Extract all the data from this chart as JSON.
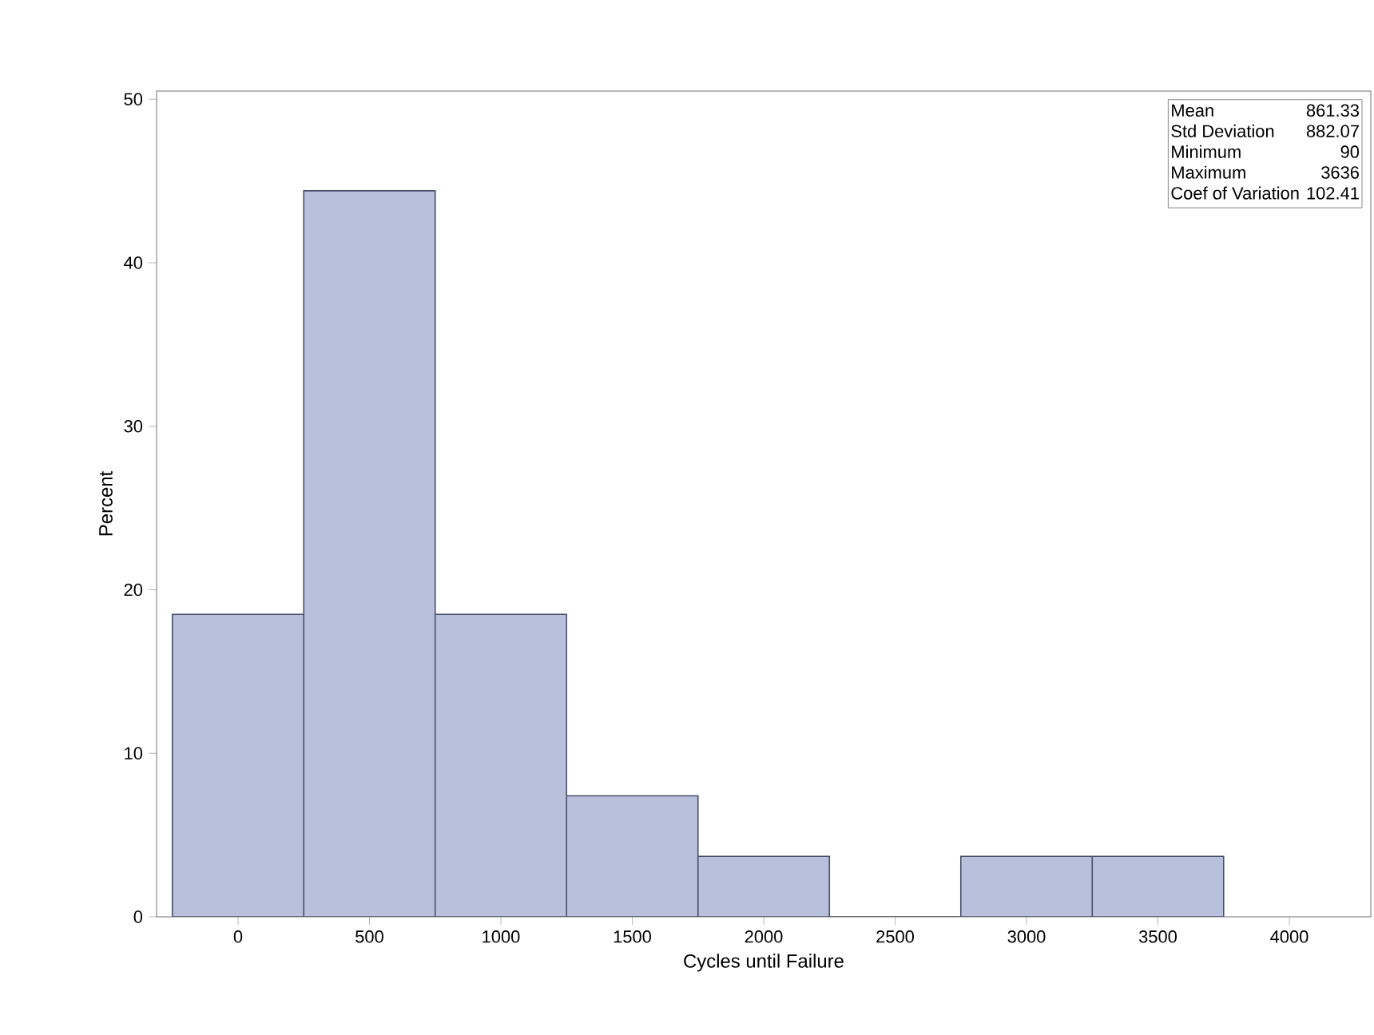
{
  "chart_data": {
    "type": "histogram",
    "xlabel": "Cycles until Failure",
    "ylabel": "Percent",
    "bins": [
      -250,
      250,
      750,
      1250,
      1750,
      2250,
      2750,
      3250,
      3750
    ],
    "values": [
      18.5,
      44.4,
      18.5,
      7.4,
      3.7,
      0,
      3.7,
      3.7
    ],
    "color": "#b8c0dc",
    "xlim": [
      -310,
      4310
    ],
    "xticks": [
      0,
      500,
      1000,
      1500,
      2000,
      2500,
      3000,
      3500,
      4000
    ],
    "ylim": [
      0,
      50.5
    ],
    "yticks": [
      0,
      10,
      20,
      30,
      40,
      50
    ],
    "annotations": [
      "Mean",
      "861.33",
      "Std Deviation",
      "882.07",
      "Minimum",
      "90",
      "Maximum",
      "3636",
      "Coef of Variation",
      "102.41"
    ]
  }
}
